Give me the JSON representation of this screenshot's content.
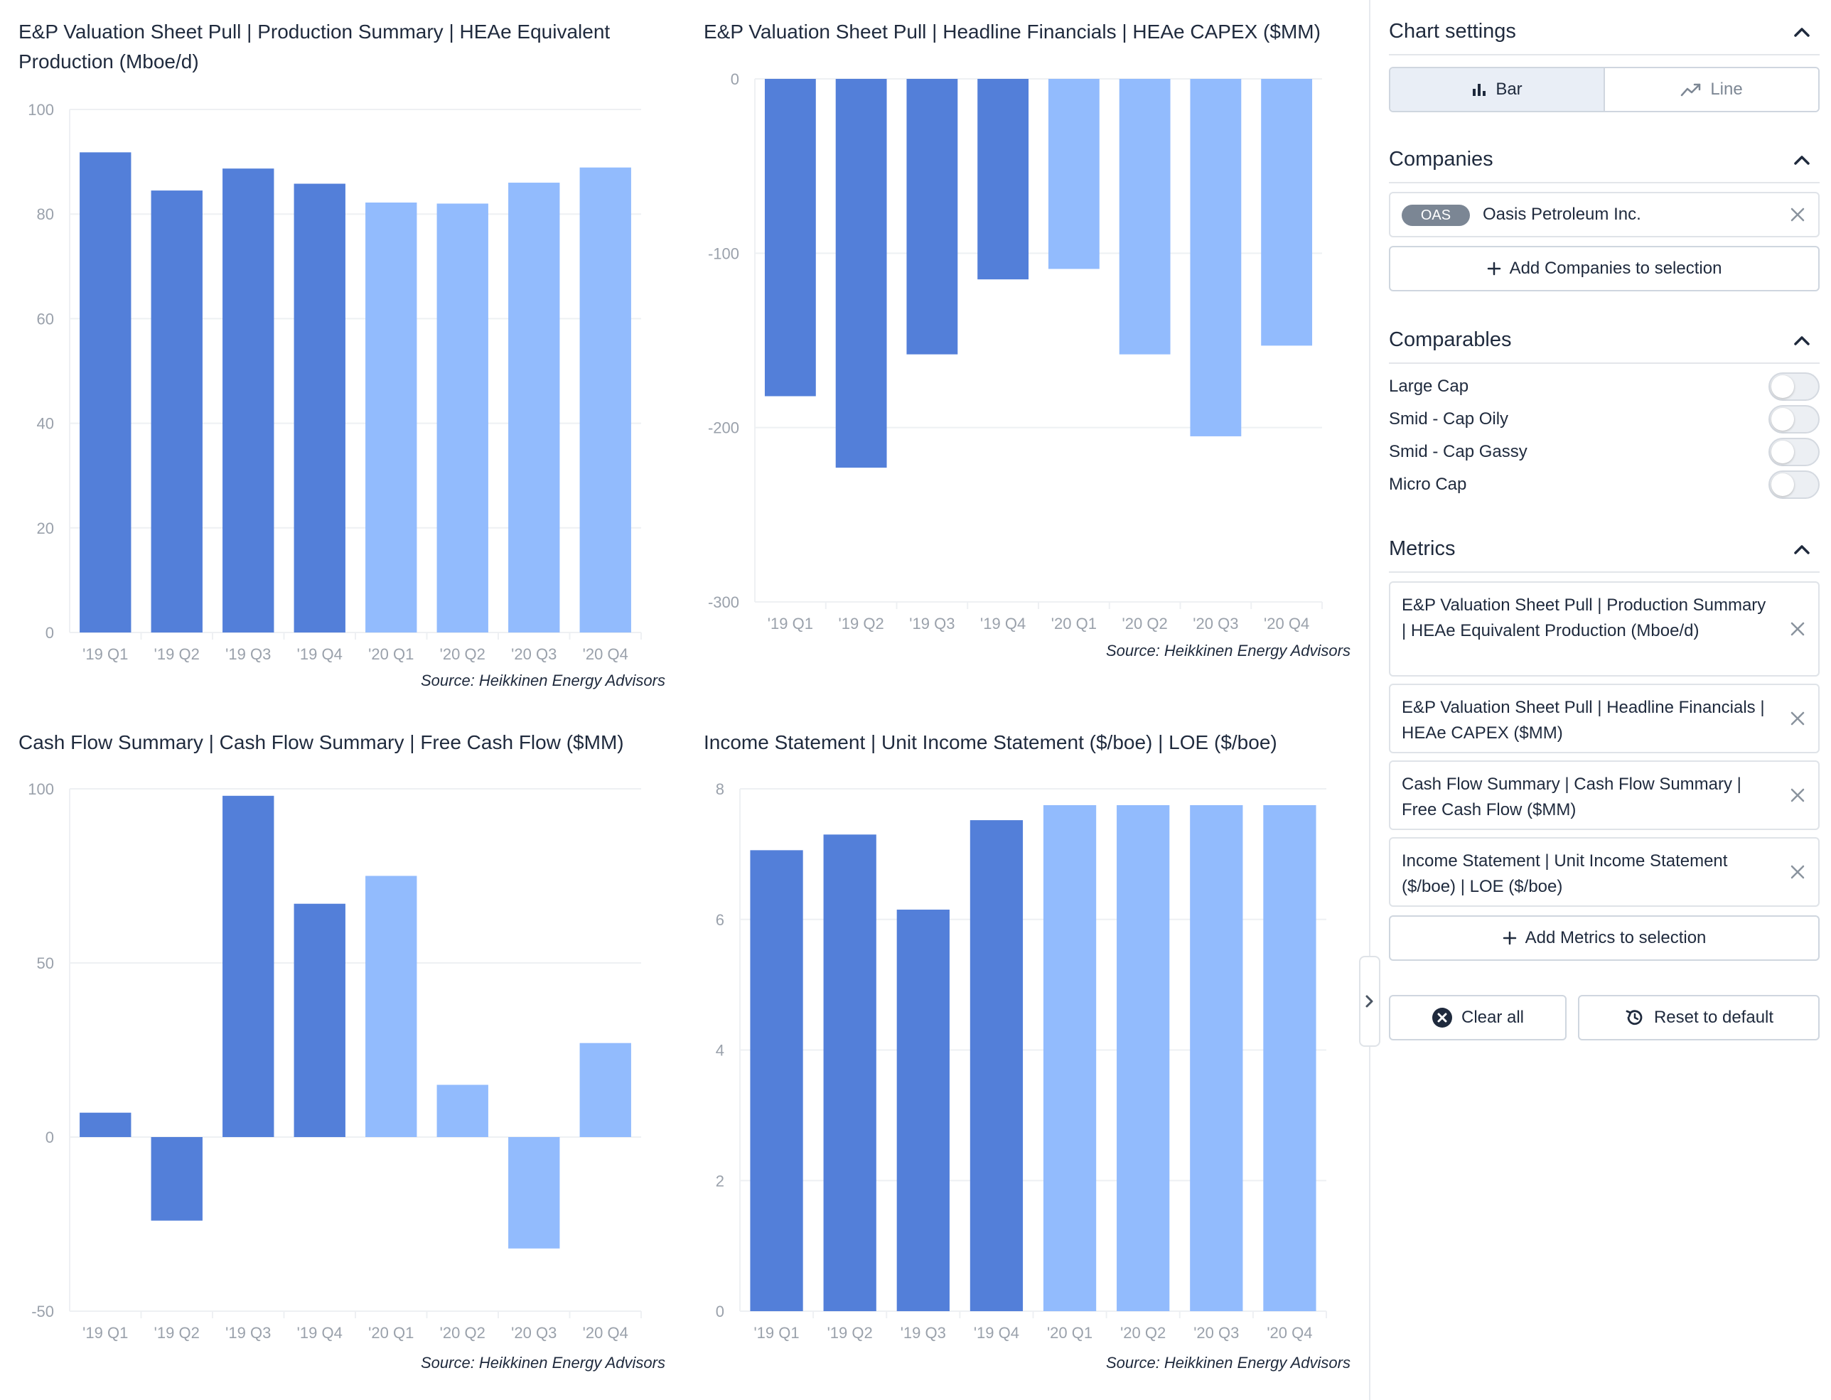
{
  "chart_data": [
    {
      "type": "bar",
      "title": "E&P Valuation Sheet Pull | Production Summary | HEAe Equivalent Production (Mboe/d)",
      "categories": [
        "'19 Q1",
        "'19 Q2",
        "'19 Q3",
        "'19 Q4",
        "'20 Q1",
        "'20 Q2",
        "'20 Q3",
        "'20 Q4"
      ],
      "values": [
        91.8,
        84.5,
        88.7,
        85.8,
        82.2,
        82.0,
        86.0,
        88.9
      ],
      "ylim": [
        0,
        100
      ],
      "yticks": [
        0,
        20,
        40,
        60,
        80,
        100
      ],
      "source": "Source: Heikkinen Energy Advisors"
    },
    {
      "type": "bar",
      "title": "E&P Valuation Sheet Pull | Headline Financials | HEAe CAPEX ($MM)",
      "categories": [
        "'19 Q1",
        "'19 Q2",
        "'19 Q3",
        "'19 Q4",
        "'20 Q1",
        "'20 Q2",
        "'20 Q3",
        "'20 Q4"
      ],
      "values": [
        -182,
        -223,
        -158,
        -115,
        -109,
        -158,
        -205,
        -153
      ],
      "ylim": [
        -300,
        0
      ],
      "yticks": [
        -300,
        -200,
        -100,
        0
      ],
      "source": "Source: Heikkinen Energy Advisors"
    },
    {
      "type": "bar",
      "title": "Cash Flow Summary | Cash Flow Summary | Free Cash Flow ($MM)",
      "categories": [
        "'19 Q1",
        "'19 Q2",
        "'19 Q3",
        "'19 Q4",
        "'20 Q1",
        "'20 Q2",
        "'20 Q3",
        "'20 Q4"
      ],
      "values": [
        7,
        -24,
        98,
        67,
        75,
        15,
        -32,
        27
      ],
      "ylim": [
        -50,
        100
      ],
      "yticks": [
        -50,
        0,
        50,
        100
      ],
      "source": "Source: Heikkinen Energy Advisors"
    },
    {
      "type": "bar",
      "title": "Income Statement | Unit Income Statement ($/boe) | LOE ($/boe)",
      "categories": [
        "'19 Q1",
        "'19 Q2",
        "'19 Q3",
        "'19 Q4",
        "'20 Q1",
        "'20 Q2",
        "'20 Q3",
        "'20 Q4"
      ],
      "values": [
        7.06,
        7.3,
        6.15,
        7.52,
        7.75,
        7.75,
        7.75,
        7.75
      ],
      "ylim": [
        0,
        8
      ],
      "yticks": [
        0,
        2,
        4,
        6,
        8
      ],
      "source": "Source: Heikkinen Energy Advisors"
    }
  ],
  "colors": {
    "actual": "#537fd9",
    "estimate": "#92bbfd",
    "grid": "#eef0f3",
    "tick_text": "#9aa1ab"
  },
  "sidebar": {
    "chart_settings": {
      "title": "Chart settings",
      "bar_label": "Bar",
      "line_label": "Line",
      "selected": "Bar"
    },
    "companies": {
      "title": "Companies",
      "items": [
        {
          "ticker": "OAS",
          "name": "Oasis Petroleum Inc."
        }
      ],
      "add_label": "Add Companies to selection"
    },
    "comparables": {
      "title": "Comparables",
      "items": [
        {
          "label": "Large Cap",
          "on": false
        },
        {
          "label": "Smid - Cap Oily",
          "on": false
        },
        {
          "label": "Smid - Cap Gassy",
          "on": false
        },
        {
          "label": "Micro Cap",
          "on": false
        }
      ]
    },
    "metrics": {
      "title": "Metrics",
      "items": [
        "E&P Valuation Sheet Pull | Production Summary | HEAe Equivalent Production (Mboe/d)",
        "E&P Valuation Sheet Pull | Headline Financials | HEAe CAPEX ($MM)",
        "Cash Flow Summary | Cash Flow Summary | Free Cash Flow ($MM)",
        "Income Statement | Unit Income Statement ($/boe) | LOE ($/boe)"
      ],
      "add_label": "Add Metrics to selection"
    },
    "clear_label": "Clear all",
    "reset_label": "Reset to default",
    "icons": [
      "bar-chart-icon",
      "line-chart-icon",
      "chevron-up-icon",
      "close-icon",
      "plus-icon",
      "clear-circle-icon",
      "reset-icon",
      "chevron-right-icon"
    ]
  }
}
